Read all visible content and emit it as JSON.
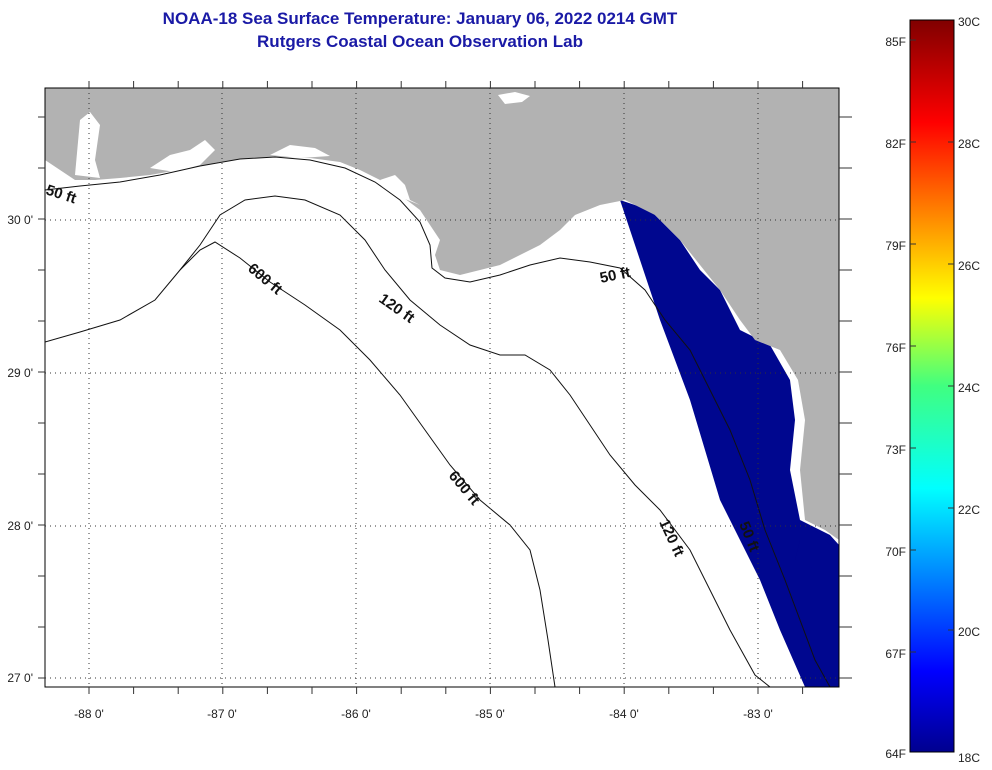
{
  "header": {
    "title": "NOAA-18 Sea Surface Temperature:  January 06, 2022 0214 GMT",
    "subtitle": "Rutgers Coastal Ocean Observation Lab"
  },
  "map": {
    "longitude_labels": [
      "-88 0'",
      "-87 0'",
      "-86 0'",
      "-85 0'",
      "-84 0'",
      "-83 0'"
    ],
    "latitude_labels": [
      "30 0'",
      "29 0'",
      "28 0'",
      "27 0'"
    ],
    "contour_labels": [
      "50 ft",
      "600 ft",
      "120 ft",
      "50 ft",
      "600 ft",
      "120 ft",
      "50 ft"
    ],
    "colors": {
      "land": "#b2b2b2",
      "water_sst": "#00078f",
      "no_data": "#ffffff"
    }
  },
  "colorbar": {
    "fahrenheit_labels": [
      "85F",
      "82F",
      "79F",
      "76F",
      "73F",
      "70F",
      "67F",
      "64F"
    ],
    "celsius_labels": [
      "30C",
      "28C",
      "26C",
      "24C",
      "22C",
      "20C",
      "18C"
    ],
    "colormap": "jet"
  }
}
